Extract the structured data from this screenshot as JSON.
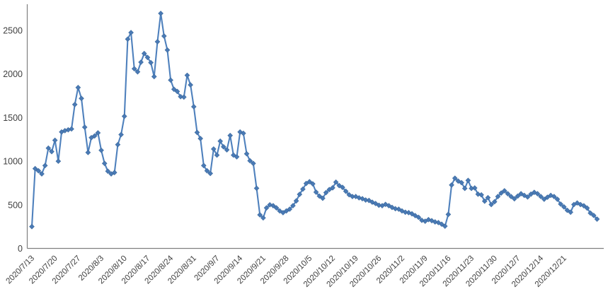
{
  "chart_data": {
    "type": "line",
    "title": "",
    "xlabel": "",
    "ylabel": "",
    "legend": false,
    "grid": false,
    "marker": "diamond",
    "x_start": "2020/7/13",
    "x_frequency": "daily",
    "x_tick_labels": [
      "2020/7/13",
      "2020/7/20",
      "2020/7/27",
      "2020/8/3",
      "2020/8/10",
      "2020/8/17",
      "2020/8/24",
      "2020/8/31",
      "2020/9/7",
      "2020/9/14",
      "2020/9/21",
      "2020/9/28",
      "2020/10/5",
      "2020/10/12",
      "2020/10/19",
      "2020/10/26",
      "2020/11/2",
      "2020/11/9",
      "2020/11/16",
      "2020/11/23",
      "2020/11/30",
      "2020/12/7",
      "2020/12/14",
      "2020/12/21"
    ],
    "x_tick_every_n_points": 7,
    "y_ticks": [
      0,
      500,
      1000,
      1500,
      2000,
      2500
    ],
    "ylim": [
      0,
      2800
    ],
    "values": [
      250,
      915,
      890,
      855,
      950,
      1150,
      1110,
      1240,
      1000,
      1335,
      1350,
      1360,
      1370,
      1650,
      1845,
      1720,
      1390,
      1100,
      1270,
      1290,
      1325,
      1125,
      975,
      885,
      855,
      870,
      1190,
      1305,
      1515,
      2400,
      2475,
      2060,
      2025,
      2135,
      2235,
      2190,
      2130,
      1970,
      2370,
      2695,
      2435,
      2275,
      1930,
      1825,
      1800,
      1740,
      1735,
      1985,
      1875,
      1625,
      1330,
      1260,
      950,
      890,
      860,
      1140,
      1070,
      1230,
      1165,
      1130,
      1295,
      1070,
      1050,
      1335,
      1320,
      1085,
      1005,
      975,
      690,
      385,
      350,
      465,
      500,
      490,
      465,
      430,
      410,
      430,
      450,
      490,
      545,
      620,
      680,
      745,
      765,
      740,
      645,
      600,
      575,
      640,
      675,
      695,
      760,
      720,
      700,
      655,
      615,
      595,
      595,
      580,
      570,
      555,
      550,
      530,
      515,
      495,
      490,
      505,
      490,
      470,
      455,
      450,
      430,
      415,
      410,
      397,
      376,
      357,
      322,
      312,
      330,
      318,
      304,
      296,
      278,
      255,
      390,
      727,
      805,
      772,
      754,
      688,
      780,
      688,
      693,
      622,
      614,
      542,
      582,
      503,
      535,
      595,
      635,
      661,
      627,
      595,
      569,
      600,
      627,
      608,
      590,
      622,
      643,
      627,
      595,
      564,
      587,
      608,
      595,
      564,
      508,
      476,
      437,
      415,
      503,
      521,
      503,
      489,
      463,
      405,
      378,
      336
    ],
    "colors": {
      "series": "#4f81bd",
      "marker_fill": "#4a7ab5",
      "marker_edge": "#3c6a9e",
      "axis": "#808080",
      "tick_label": "#3f3f3f",
      "background": "#ffffff"
    }
  }
}
